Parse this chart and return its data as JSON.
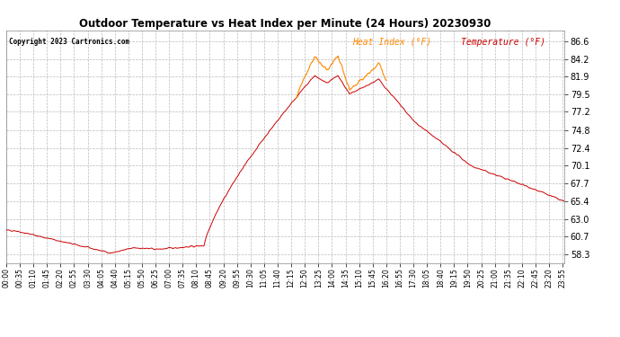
{
  "title": "Outdoor Temperature vs Heat Index per Minute (24 Hours) 20230930",
  "copyright_text": "Copyright 2023 Cartronics.com",
  "legend_heat_index": "Heat Index (°F)",
  "legend_temperature": "Temperature (°F)",
  "temp_color": "#cc0000",
  "heat_index_color": "#ff8800",
  "background_color": "#ffffff",
  "grid_color": "#bbbbbb",
  "title_color": "#000000",
  "copyright_color": "#000000",
  "yticks": [
    58.3,
    60.7,
    63.0,
    65.4,
    67.7,
    70.1,
    72.4,
    74.8,
    77.2,
    79.5,
    81.9,
    84.2,
    86.6
  ],
  "ylim": [
    57.2,
    88.0
  ],
  "figsize": [
    6.9,
    3.75
  ],
  "dpi": 100
}
